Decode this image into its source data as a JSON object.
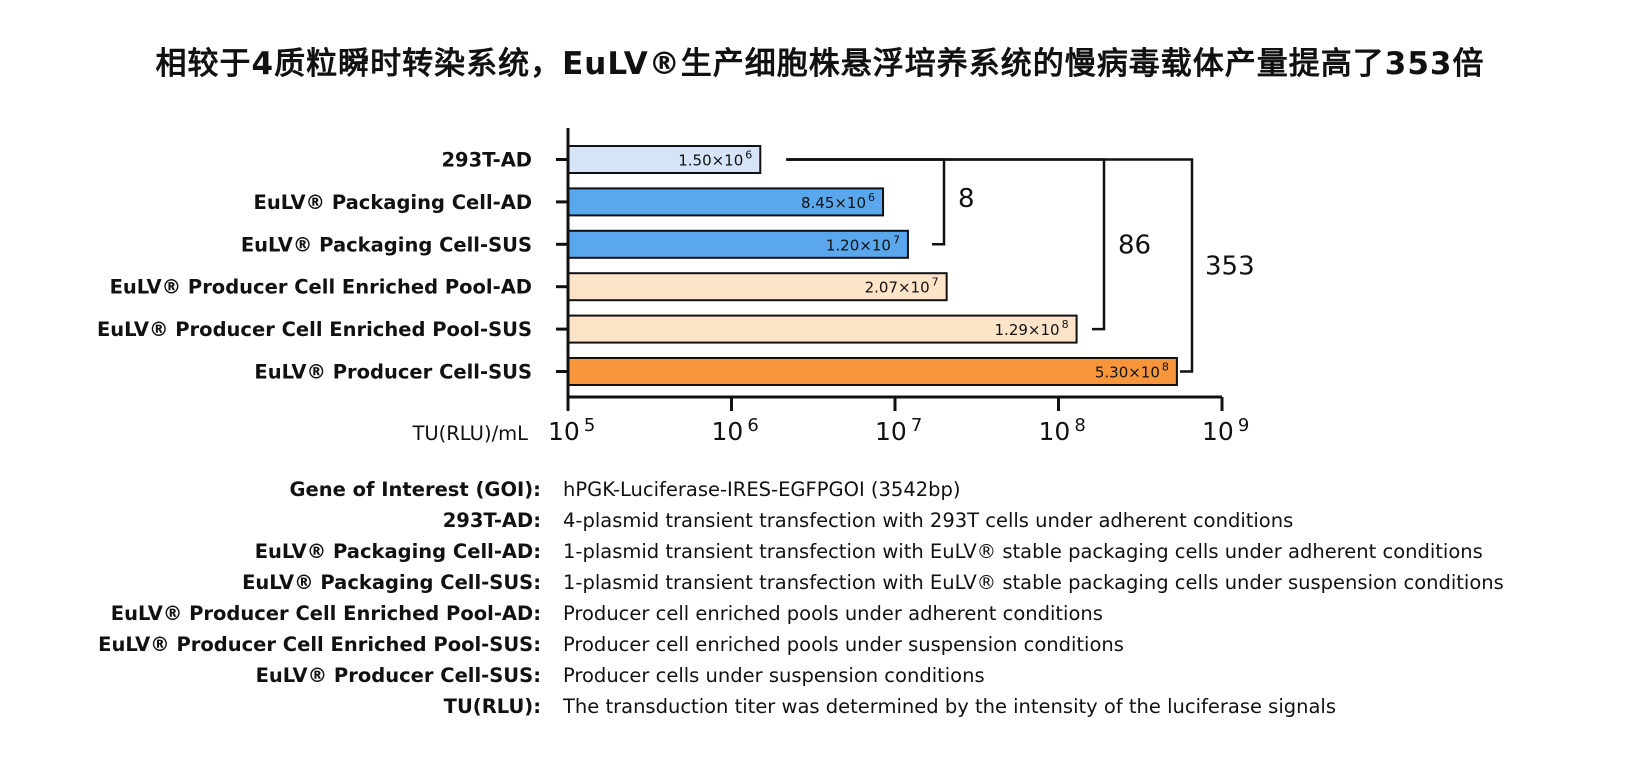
{
  "title": "相较于4质粒瞬时转染系统，EuLV®生产细胞株悬浮培养系统的慢病毒载体产量提高了353倍",
  "chart_data": {
    "type": "bar",
    "orientation": "horizontal",
    "scale": "log",
    "xlim": [
      100000,
      1000000000
    ],
    "xlabel": "TU(RLU)/mL",
    "xticks": [
      {
        "base": "10",
        "exp": "5",
        "value": 100000
      },
      {
        "base": "10",
        "exp": "6",
        "value": 1000000
      },
      {
        "base": "10",
        "exp": "7",
        "value": 10000000
      },
      {
        "base": "10",
        "exp": "8",
        "value": 100000000
      },
      {
        "base": "10",
        "exp": "9",
        "value": 1000000000
      }
    ],
    "bars": [
      {
        "category": "293T-AD",
        "value": 1500000,
        "label_mantissa": "1.50×10",
        "label_exp": "6",
        "color": "#d6e4f7"
      },
      {
        "category": "EuLV®  Packaging Cell-AD",
        "value": 8450000,
        "label_mantissa": "8.45×10",
        "label_exp": "6",
        "color": "#5aa7ee"
      },
      {
        "category": "EuLV®  Packaging Cell-SUS",
        "value": 12000000,
        "label_mantissa": "1.20×10",
        "label_exp": "7",
        "color": "#5aa7ee"
      },
      {
        "category": "EuLV®  Producer Cell Enriched Pool-AD",
        "value": 20700000,
        "label_mantissa": "2.07×10",
        "label_exp": "7",
        "color": "#fde3c8"
      },
      {
        "category": "EuLV®  Producer Cell Enriched Pool-SUS",
        "value": 129000000,
        "label_mantissa": "1.29×10",
        "label_exp": "8",
        "color": "#fde3c8"
      },
      {
        "category": "EuLV®  Producer Cell-SUS",
        "value": 530000000,
        "label_mantissa": "5.30×10",
        "label_exp": "8",
        "color": "#f7963a"
      }
    ],
    "brackets": [
      {
        "from": "293T-AD",
        "to": "EuLV®  Packaging Cell-SUS",
        "label": "8"
      },
      {
        "from": "293T-AD",
        "to": "EuLV®  Producer Cell Enriched Pool-SUS",
        "label": "86"
      },
      {
        "from": "293T-AD",
        "to": "EuLV®  Producer Cell-SUS",
        "label": "353"
      }
    ]
  },
  "legend": [
    {
      "term": "Gene of Interest (GOI):",
      "definition": "hPGK-Luciferase-IRES-EGFPGOI (3542bp)"
    },
    {
      "term": "293T-AD:",
      "definition": "4-plasmid transient transfection with 293T cells under adherent conditions"
    },
    {
      "term": "EuLV®  Packaging Cell-AD:",
      "definition": "1-plasmid transient transfection with EuLV® stable packaging cells under adherent conditions"
    },
    {
      "term": "EuLV®  Packaging Cell-SUS:",
      "definition": "1-plasmid transient transfection with EuLV® stable packaging cells under suspension conditions"
    },
    {
      "term": "EuLV®  Producer Cell Enriched Pool-AD:",
      "definition": "Producer cell enriched pools under adherent conditions"
    },
    {
      "term": "EuLV®  Producer Cell Enriched Pool-SUS:",
      "definition": "Producer cell enriched pools under suspension conditions"
    },
    {
      "term": "EuLV®  Producer Cell-SUS:",
      "definition": "Producer cells under suspension conditions"
    },
    {
      "term": "TU(RLU):",
      "definition": "The transduction titer was determined by the intensity of the luciferase signals"
    }
  ]
}
